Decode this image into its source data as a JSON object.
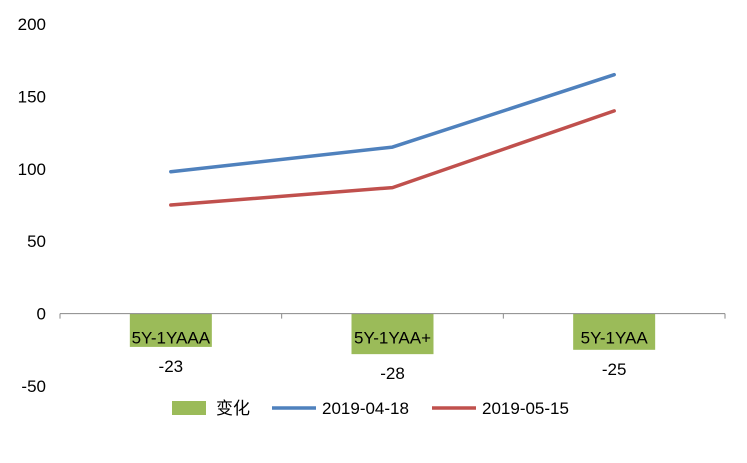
{
  "chart_data": {
    "type": "bar+line",
    "categories": [
      "5Y-1YAAA",
      "5Y-1YAA+",
      "5Y-1YAA"
    ],
    "bar_series": {
      "name": "变化",
      "values": [
        -23,
        -28,
        -25
      ],
      "color": "#9BBB59",
      "labels": [
        "-23",
        "-28",
        "-25"
      ]
    },
    "line_series": [
      {
        "name": "2019-04-18",
        "values": [
          98,
          115,
          165
        ],
        "color": "#4F81BD"
      },
      {
        "name": "2019-05-15",
        "values": [
          75,
          87,
          140
        ],
        "color": "#C0504D"
      }
    ],
    "ylim": [
      -50,
      200
    ],
    "yticks": [
      -50,
      0,
      50,
      100,
      150,
      200
    ],
    "ytick_labels": [
      "-50",
      "0",
      "50",
      "100",
      "150",
      "200"
    ],
    "legend_position": "bottom",
    "grid": false
  }
}
